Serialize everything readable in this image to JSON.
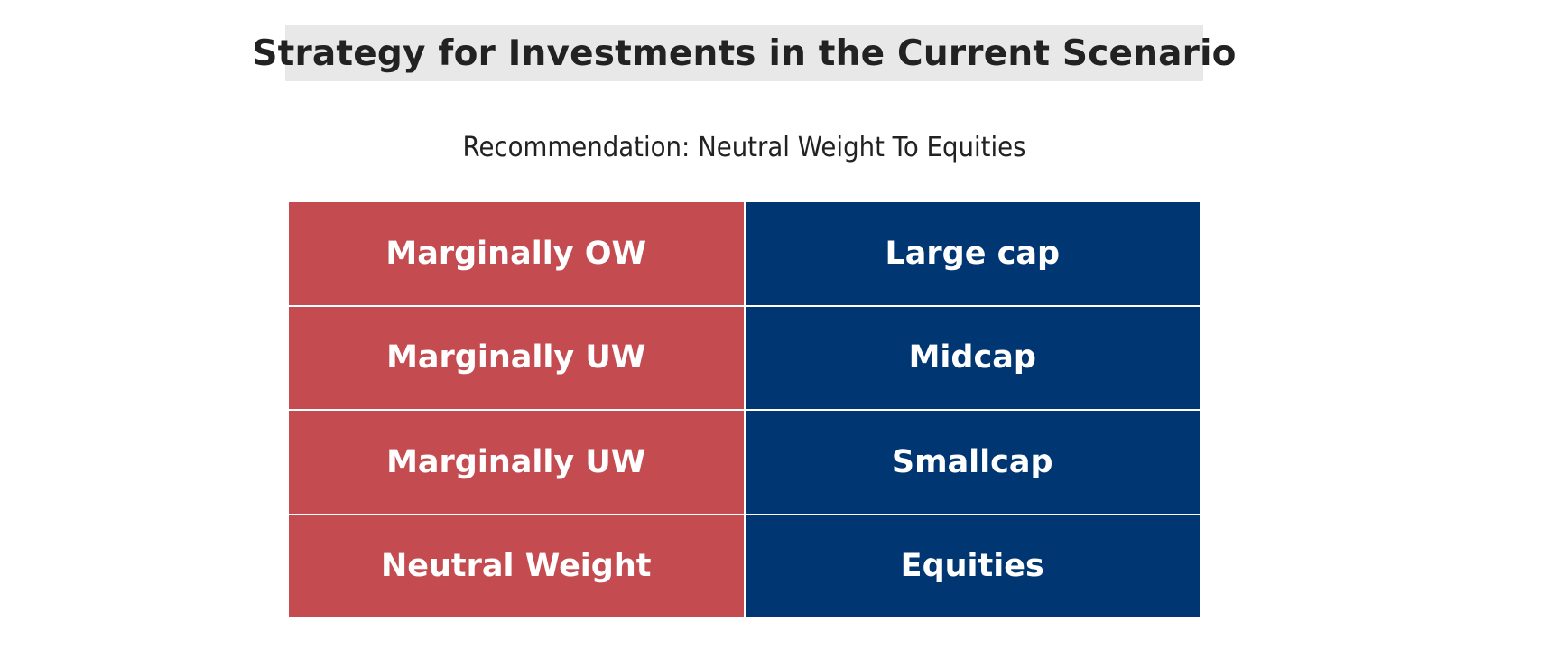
{
  "title": "Strategy for Investments in the Current Scenario",
  "subtitle": "Recommendation: Neutral Weight To Equities",
  "colors": {
    "stance_bg": "#c44b50",
    "segment_bg": "#003672",
    "title_bg": "#e8e8e8"
  },
  "rows": [
    {
      "stance": "Marginally OW",
      "segment": "Large cap"
    },
    {
      "stance": "Marginally UW",
      "segment": "Midcap"
    },
    {
      "stance": "Marginally UW",
      "segment": "Smallcap"
    },
    {
      "stance": "Neutral Weight",
      "segment": "Equities"
    }
  ]
}
